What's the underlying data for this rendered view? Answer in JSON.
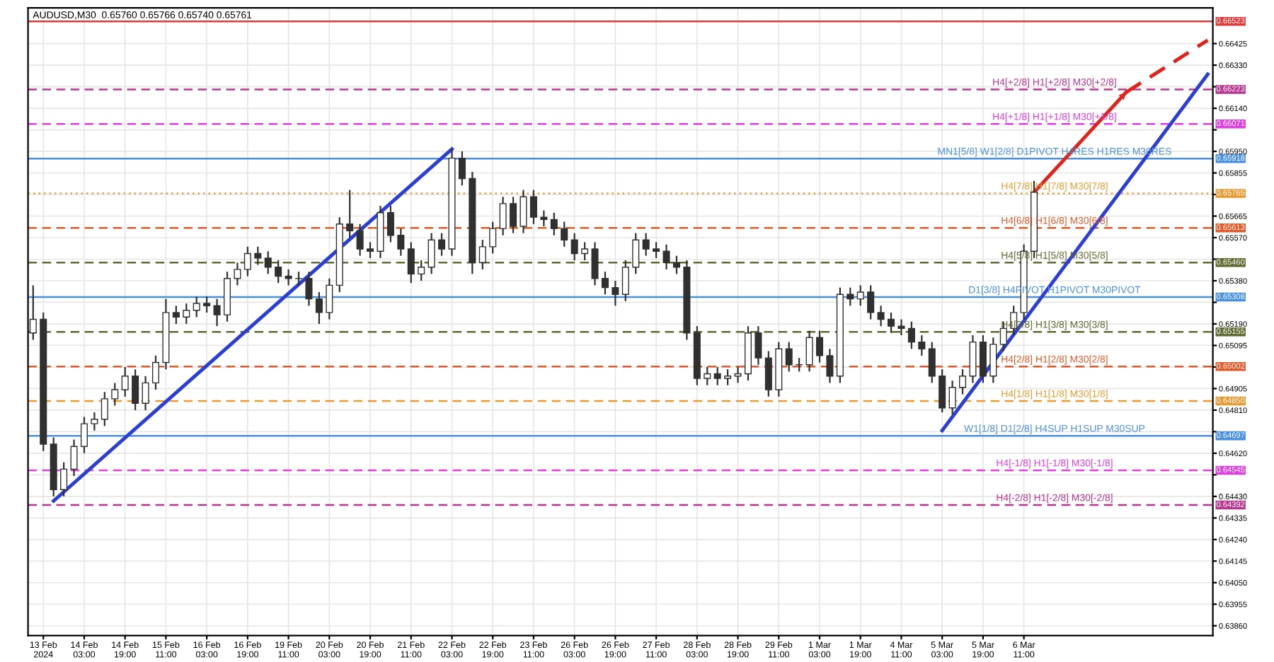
{
  "chart_data": {
    "type": "candlestick",
    "title": "AUDUSD,M30  0.65760 0.65766 0.65740 0.65761",
    "categories": [
      null,
      "13 Feb 2024",
      null,
      null,
      null,
      "14 Feb 03:00",
      null,
      null,
      null,
      "14 Feb 19:00",
      null,
      null,
      null,
      "15 Feb 11:00",
      null,
      null,
      null,
      "16 Feb 03:00",
      null,
      null,
      null,
      "16 Feb 19:00",
      null,
      null,
      null,
      "19 Feb 11:00",
      null,
      null,
      null,
      "20 Feb 03:00",
      null,
      null,
      null,
      "20 Feb 19:00",
      null,
      null,
      null,
      "21 Feb 11:00",
      null,
      null,
      null,
      "22 Feb 03:00",
      null,
      null,
      null,
      "22 Feb 19:00",
      null,
      null,
      null,
      "23 Feb 11:00",
      null,
      null,
      null,
      "26 Feb 03:00",
      null,
      null,
      null,
      "26 Feb 19:00",
      null,
      null,
      null,
      "27 Feb 11:00",
      null,
      null,
      null,
      "28 Feb 03:00",
      null,
      null,
      null,
      "28 Feb 19:00",
      null,
      null,
      null,
      "29 Feb 11:00",
      null,
      null,
      null,
      "1 Mar 03:00",
      null,
      null,
      null,
      "1 Mar 19:00",
      null,
      null,
      null,
      "4 Mar 11:00",
      null,
      null,
      null,
      "5 Mar 03:00",
      null,
      null,
      null,
      "5 Mar 19:00",
      null,
      null,
      null,
      "6 Mar 11:00",
      null,
      null,
      null,
      null,
      null,
      null,
      null,
      null,
      null,
      null,
      null,
      null,
      null,
      null,
      null,
      null,
      null,
      null
    ],
    "color": "#303030",
    "ohlc": [
      [
        0.6515,
        0.6536,
        0.6512,
        0.6521
      ],
      [
        0.6521,
        0.6524,
        0.6463,
        0.6466
      ],
      [
        0.6466,
        0.6469,
        0.6443,
        0.6446
      ],
      [
        0.6446,
        0.6458,
        0.6443,
        0.6455
      ],
      [
        0.6455,
        0.6468,
        0.6452,
        0.6465
      ],
      [
        0.6465,
        0.6478,
        0.6462,
        0.6475
      ],
      [
        0.6475,
        0.648,
        0.6472,
        0.6477
      ],
      [
        0.6477,
        0.6489,
        0.6474,
        0.6486
      ],
      [
        0.6486,
        0.6493,
        0.6483,
        0.649
      ],
      [
        0.649,
        0.65,
        0.6487,
        0.6496
      ],
      [
        0.6496,
        0.6499,
        0.6481,
        0.6484
      ],
      [
        0.6484,
        0.6496,
        0.6481,
        0.6493
      ],
      [
        0.6493,
        0.6505,
        0.649,
        0.6502
      ],
      [
        0.6502,
        0.653,
        0.6499,
        0.6524
      ],
      [
        0.6524,
        0.6527,
        0.6519,
        0.6522
      ],
      [
        0.6522,
        0.6528,
        0.6519,
        0.6525
      ],
      [
        0.6525,
        0.6531,
        0.6522,
        0.6528
      ],
      [
        0.6528,
        0.6531,
        0.6524,
        0.6527
      ],
      [
        0.6527,
        0.653,
        0.6518,
        0.6523
      ],
      [
        0.6523,
        0.6542,
        0.652,
        0.6539
      ],
      [
        0.6539,
        0.6546,
        0.6536,
        0.6543
      ],
      [
        0.6543,
        0.6553,
        0.654,
        0.655
      ],
      [
        0.655,
        0.6553,
        0.6545,
        0.6548
      ],
      [
        0.6548,
        0.6551,
        0.6541,
        0.6544
      ],
      [
        0.6544,
        0.6547,
        0.6537,
        0.654
      ],
      [
        0.654,
        0.6543,
        0.6536,
        0.6539
      ],
      [
        0.6539,
        0.6542,
        0.6536,
        0.6539
      ],
      [
        0.6539,
        0.6542,
        0.6527,
        0.653
      ],
      [
        0.653,
        0.6533,
        0.6519,
        0.6524
      ],
      [
        0.6524,
        0.6539,
        0.6521,
        0.6536
      ],
      [
        0.6536,
        0.6566,
        0.6533,
        0.6563
      ],
      [
        0.6563,
        0.6578,
        0.6557,
        0.656
      ],
      [
        0.656,
        0.6563,
        0.6549,
        0.6552
      ],
      [
        0.6552,
        0.6555,
        0.6548,
        0.6551
      ],
      [
        0.6551,
        0.6571,
        0.6548,
        0.6568
      ],
      [
        0.6568,
        0.6571,
        0.6555,
        0.6558
      ],
      [
        0.6558,
        0.6561,
        0.6549,
        0.6552
      ],
      [
        0.6552,
        0.6555,
        0.6537,
        0.6541
      ],
      [
        0.6541,
        0.6547,
        0.6538,
        0.6544
      ],
      [
        0.6544,
        0.6559,
        0.6541,
        0.6556
      ],
      [
        0.6556,
        0.6559,
        0.6549,
        0.6552
      ],
      [
        0.6552,
        0.6596,
        0.6549,
        0.6592
      ],
      [
        0.6592,
        0.6595,
        0.658,
        0.6583
      ],
      [
        0.6583,
        0.6586,
        0.6541,
        0.6546
      ],
      [
        0.6546,
        0.6556,
        0.6543,
        0.6553
      ],
      [
        0.6553,
        0.6564,
        0.655,
        0.6561
      ],
      [
        0.6561,
        0.6575,
        0.6558,
        0.6572
      ],
      [
        0.6572,
        0.6575,
        0.6559,
        0.6562
      ],
      [
        0.6562,
        0.6578,
        0.6559,
        0.6575
      ],
      [
        0.6575,
        0.6578,
        0.6563,
        0.6566
      ],
      [
        0.6566,
        0.6569,
        0.6562,
        0.6565
      ],
      [
        0.6565,
        0.6568,
        0.6558,
        0.6561
      ],
      [
        0.6561,
        0.6564,
        0.6553,
        0.6556
      ],
      [
        0.6556,
        0.6559,
        0.6547,
        0.655
      ],
      [
        0.655,
        0.6555,
        0.6547,
        0.6552
      ],
      [
        0.6552,
        0.6555,
        0.6536,
        0.6539
      ],
      [
        0.6539,
        0.6542,
        0.6532,
        0.6535
      ],
      [
        0.6535,
        0.6538,
        0.6527,
        0.6532
      ],
      [
        0.6532,
        0.6547,
        0.6529,
        0.6544
      ],
      [
        0.6544,
        0.6559,
        0.6541,
        0.6556
      ],
      [
        0.6556,
        0.6559,
        0.6549,
        0.6552
      ],
      [
        0.6552,
        0.6555,
        0.6548,
        0.6551
      ],
      [
        0.6551,
        0.6554,
        0.6543,
        0.6546
      ],
      [
        0.6546,
        0.6549,
        0.6541,
        0.6544
      ],
      [
        0.6544,
        0.6547,
        0.6512,
        0.6515
      ],
      [
        0.6515,
        0.6518,
        0.6492,
        0.6495
      ],
      [
        0.6495,
        0.65,
        0.6492,
        0.6497
      ],
      [
        0.6497,
        0.65,
        0.6492,
        0.6495
      ],
      [
        0.6495,
        0.6499,
        0.6492,
        0.6496
      ],
      [
        0.6496,
        0.65,
        0.6493,
        0.6497
      ],
      [
        0.6497,
        0.6518,
        0.6494,
        0.6515
      ],
      [
        0.6515,
        0.6518,
        0.6501,
        0.6504
      ],
      [
        0.6504,
        0.6507,
        0.6487,
        0.649
      ],
      [
        0.649,
        0.6511,
        0.6487,
        0.6508
      ],
      [
        0.6508,
        0.6511,
        0.6498,
        0.6501
      ],
      [
        0.6501,
        0.6504,
        0.6498,
        0.6501
      ],
      [
        0.6501,
        0.6516,
        0.6498,
        0.6513
      ],
      [
        0.6513,
        0.6516,
        0.6502,
        0.6505
      ],
      [
        0.6505,
        0.6508,
        0.6493,
        0.6496
      ],
      [
        0.6496,
        0.6535,
        0.6493,
        0.6532
      ],
      [
        0.6532,
        0.6535,
        0.6527,
        0.653
      ],
      [
        0.653,
        0.6536,
        0.6527,
        0.6533
      ],
      [
        0.6533,
        0.6536,
        0.6521,
        0.6524
      ],
      [
        0.6524,
        0.6527,
        0.6518,
        0.6521
      ],
      [
        0.6521,
        0.6524,
        0.6515,
        0.6518
      ],
      [
        0.6518,
        0.6521,
        0.6514,
        0.6517
      ],
      [
        0.6517,
        0.652,
        0.6508,
        0.6511
      ],
      [
        0.6511,
        0.6514,
        0.6505,
        0.6508
      ],
      [
        0.6508,
        0.6511,
        0.6493,
        0.6496
      ],
      [
        0.6496,
        0.6499,
        0.648,
        0.6482
      ],
      [
        0.6482,
        0.6494,
        0.6479,
        0.6491
      ],
      [
        0.6491,
        0.6499,
        0.6488,
        0.6496
      ],
      [
        0.6496,
        0.6514,
        0.6493,
        0.6511
      ],
      [
        0.6511,
        0.6514,
        0.6493,
        0.6496
      ],
      [
        0.6496,
        0.6513,
        0.6493,
        0.651
      ],
      [
        0.651,
        0.652,
        0.6507,
        0.6517
      ],
      [
        0.6517,
        0.6527,
        0.6514,
        0.6524
      ],
      [
        0.6524,
        0.6554,
        0.6521,
        0.6551
      ],
      [
        0.6551,
        0.6582,
        0.6548,
        0.6577
      ],
      null,
      null,
      null,
      null,
      null,
      null,
      null,
      null,
      null,
      null,
      null,
      null,
      null,
      null,
      null,
      null,
      null
    ],
    "series": [
      {
        "type": "line",
        "color": "#2b3fd6",
        "line_style": "solid",
        "values": [
          null,
          null,
          0.6441,
          null,
          null,
          null,
          null,
          null,
          null,
          null,
          null,
          null,
          null,
          null,
          null,
          null,
          null,
          null,
          null,
          null,
          null,
          null,
          null,
          null,
          null,
          null,
          null,
          null,
          null,
          null,
          null,
          null,
          null,
          null,
          null,
          null,
          null,
          null,
          null,
          null,
          null,
          0.6596,
          null,
          null,
          null,
          null,
          null,
          null,
          null,
          null,
          null,
          null,
          null,
          null,
          null,
          null,
          null,
          null,
          null,
          null,
          null,
          null,
          null,
          null,
          null,
          null,
          null,
          null,
          null,
          null,
          null,
          null,
          null,
          null,
          null,
          null,
          null,
          null,
          null,
          null,
          null,
          null,
          null,
          null,
          null,
          null,
          null,
          null,
          null,
          null,
          null,
          null,
          null,
          null,
          null,
          null,
          null,
          null,
          null,
          null,
          null,
          null,
          null,
          null,
          null,
          null,
          null,
          null,
          null,
          null,
          null,
          null,
          null,
          null,
          null,
          null
        ]
      },
      {
        "type": "line",
        "color": "#2b3fd6",
        "line_style": "solid",
        "values": [
          null,
          null,
          null,
          null,
          null,
          null,
          null,
          null,
          null,
          null,
          null,
          null,
          null,
          null,
          null,
          null,
          null,
          null,
          null,
          null,
          null,
          null,
          null,
          null,
          null,
          null,
          null,
          null,
          null,
          null,
          null,
          null,
          null,
          null,
          null,
          null,
          null,
          null,
          null,
          null,
          null,
          null,
          null,
          null,
          null,
          null,
          null,
          null,
          null,
          null,
          null,
          null,
          null,
          null,
          null,
          null,
          null,
          null,
          null,
          null,
          null,
          null,
          null,
          null,
          null,
          null,
          null,
          null,
          null,
          null,
          null,
          null,
          null,
          null,
          null,
          null,
          null,
          null,
          null,
          null,
          null,
          null,
          null,
          null,
          null,
          null,
          null,
          null,
          null,
          0.6472,
          null,
          null,
          null,
          null,
          null,
          null,
          null,
          null,
          null,
          null,
          null,
          null,
          null,
          null,
          null,
          null,
          null,
          null,
          null,
          null,
          null,
          null,
          null,
          null,
          null,
          0.6629
        ]
      },
      {
        "type": "line",
        "color": "#e0241c",
        "line_style": "solid",
        "values": [
          null,
          null,
          null,
          null,
          null,
          null,
          null,
          null,
          null,
          null,
          null,
          null,
          null,
          null,
          null,
          null,
          null,
          null,
          null,
          null,
          null,
          null,
          null,
          null,
          null,
          null,
          null,
          null,
          null,
          null,
          null,
          null,
          null,
          null,
          null,
          null,
          null,
          null,
          null,
          null,
          null,
          null,
          null,
          null,
          null,
          null,
          null,
          null,
          null,
          null,
          null,
          null,
          null,
          null,
          null,
          null,
          null,
          null,
          null,
          null,
          null,
          null,
          null,
          null,
          null,
          null,
          null,
          null,
          null,
          null,
          null,
          null,
          null,
          null,
          null,
          null,
          null,
          null,
          null,
          null,
          null,
          null,
          null,
          null,
          null,
          null,
          null,
          null,
          null,
          null,
          null,
          null,
          null,
          null,
          null,
          null,
          null,
          null,
          0.6577,
          null,
          null,
          null,
          null,
          null,
          null,
          null,
          null,
          0.6621,
          null,
          null,
          null,
          null,
          null,
          null,
          null,
          null
        ]
      },
      {
        "type": "line",
        "color": "#e0241c",
        "line_style": "dashed",
        "values": [
          null,
          null,
          null,
          null,
          null,
          null,
          null,
          null,
          null,
          null,
          null,
          null,
          null,
          null,
          null,
          null,
          null,
          null,
          null,
          null,
          null,
          null,
          null,
          null,
          null,
          null,
          null,
          null,
          null,
          null,
          null,
          null,
          null,
          null,
          null,
          null,
          null,
          null,
          null,
          null,
          null,
          null,
          null,
          null,
          null,
          null,
          null,
          null,
          null,
          null,
          null,
          null,
          null,
          null,
          null,
          null,
          null,
          null,
          null,
          null,
          null,
          null,
          null,
          null,
          null,
          null,
          null,
          null,
          null,
          null,
          null,
          null,
          null,
          null,
          null,
          null,
          null,
          null,
          null,
          null,
          null,
          null,
          null,
          null,
          null,
          null,
          null,
          null,
          null,
          null,
          null,
          null,
          null,
          null,
          null,
          null,
          null,
          null,
          null,
          null,
          null,
          null,
          null,
          null,
          null,
          null,
          null,
          0.6621,
          null,
          null,
          null,
          null,
          null,
          null,
          null,
          0.6644
        ]
      }
    ],
    "ylim": [
      0.63817,
      0.66582
    ],
    "yticks": [
      {
        "value": 0.6386,
        "label": "0.63860"
      },
      {
        "value": 0.63955,
        "label": "0.63955"
      },
      {
        "value": 0.6405,
        "label": "0.64050"
      },
      {
        "value": 0.64145,
        "label": "0.64145"
      },
      {
        "value": 0.6424,
        "label": "0.64240"
      },
      {
        "value": 0.64335,
        "label": "0.64335"
      },
      {
        "value": 0.6443,
        "label": "0.64430"
      },
      {
        "value": 0.64525,
        "label": null
      },
      {
        "value": 0.6462,
        "label": "0.64620"
      },
      {
        "value": 0.64715,
        "label": null
      },
      {
        "value": 0.6481,
        "label": "0.64810"
      },
      {
        "value": 0.64905,
        "label": "0.64905"
      },
      {
        "value": 0.65,
        "label": null
      },
      {
        "value": 0.65095,
        "label": "0.65095"
      },
      {
        "value": 0.6519,
        "label": "0.65190"
      },
      {
        "value": 0.65285,
        "label": null
      },
      {
        "value": 0.6538,
        "label": "0.65380"
      },
      {
        "value": 0.65475,
        "label": null
      },
      {
        "value": 0.6557,
        "label": "0.65570"
      },
      {
        "value": 0.65665,
        "label": "0.65665"
      },
      {
        "value": 0.6576,
        "label": null
      },
      {
        "value": 0.65855,
        "label": "0.65855"
      },
      {
        "value": 0.6595,
        "label": "0.65950"
      },
      {
        "value": 0.66045,
        "label": null
      },
      {
        "value": 0.6614,
        "label": "0.66140"
      },
      {
        "value": 0.66235,
        "label": null
      },
      {
        "value": 0.6633,
        "label": "0.66330"
      },
      {
        "value": 0.66425,
        "label": "0.66425"
      }
    ],
    "ref_lines": [
      {
        "axis": "y",
        "value": 0.66523,
        "label": null,
        "color": "#e03a3a",
        "line_style": "solid"
      },
      {
        "axis": "y",
        "value": 0.66223,
        "label": "H4[+2/8] H1[+2/8] M30[+2/8]",
        "color": "#b8368f",
        "line_style": "dashed"
      },
      {
        "axis": "y",
        "value": 0.66071,
        "label": "H4[+1/8] H1[+1/8] M30[+1/8]",
        "color": "#de3ede",
        "line_style": "dashed"
      },
      {
        "axis": "y",
        "value": 0.65918,
        "label": "MN1[5/8] W1[2/8] D1PIVOT H4RES H1RES M30RES",
        "color": "#4a90e0",
        "line_style": "solid"
      },
      {
        "axis": "y",
        "value": 0.65765,
        "label": "H4[7/8] H1[7/8] M30[7/8]",
        "color": "#e89a30",
        "line_style": "dotted"
      },
      {
        "axis": "y",
        "value": 0.65613,
        "label": "H4[6/8] H1[6/8] M30[6/8]",
        "color": "#e05a2a",
        "line_style": "dashed"
      },
      {
        "axis": "y",
        "value": 0.6546,
        "label": "H4[5/8] H1[5/8] M30[5/8]",
        "color": "#5f6b30",
        "line_style": "dashed"
      },
      {
        "axis": "y",
        "value": 0.65308,
        "label": "D1[3/8] H4PIVOT H1PIVOT M30PIVOT",
        "color": "#4a90e0",
        "line_style": "solid"
      },
      {
        "axis": "y",
        "value": 0.65155,
        "label": "H4[3/8] H1[3/8] M30[3/8]",
        "color": "#5f6b30",
        "line_style": "dashed"
      },
      {
        "axis": "y",
        "value": 0.65002,
        "label": "H4[2/8] H1[2/8] M30[2/8]",
        "color": "#e05a2a",
        "line_style": "dashed"
      },
      {
        "axis": "y",
        "value": 0.6485,
        "label": "H4[1/8] H1[1/8] M30[1/8]",
        "color": "#e89a30",
        "line_style": "dashed"
      },
      {
        "axis": "y",
        "value": 0.64697,
        "label": "W1[1/8] D1[2/8] H4SUP H1SUP M30SUP",
        "color": "#4a90e0",
        "line_style": "solid"
      },
      {
        "axis": "y",
        "value": 0.64545,
        "label": "H4[-1/8] H1[-1/8] M30[-1/8]",
        "color": "#de3ede",
        "line_style": "dashed"
      },
      {
        "axis": "y",
        "value": 0.64392,
        "label": "H4[-2/8] H1[-2/8] M30[-2/8]",
        "color": "#b8368f",
        "line_style": "dashed"
      }
    ],
    "annotations": [
      "0.66523",
      "0.66223",
      "0.66071",
      "0.65918",
      "0.65765",
      "0.65613",
      "0.65460",
      "0.65308",
      "0.65155",
      "0.65002",
      "0.64850",
      "0.64697",
      "0.64545",
      "0.64392"
    ],
    "grid": true
  }
}
